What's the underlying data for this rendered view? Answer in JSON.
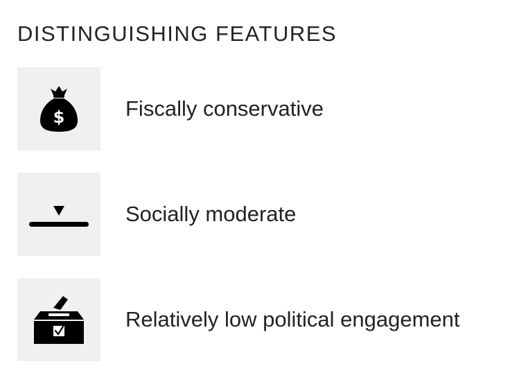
{
  "heading": "DISTINGUISHING FEATURES",
  "features": [
    {
      "label": "Fiscally conservative",
      "icon": "money-bag-icon"
    },
    {
      "label": "Socially moderate",
      "icon": "middle-marker-icon"
    },
    {
      "label": "Relatively low political engagement",
      "icon": "ballot-box-icon"
    }
  ],
  "colors": {
    "icon_background": "#f0f0f0",
    "icon": "#000000",
    "text": "#222222"
  }
}
